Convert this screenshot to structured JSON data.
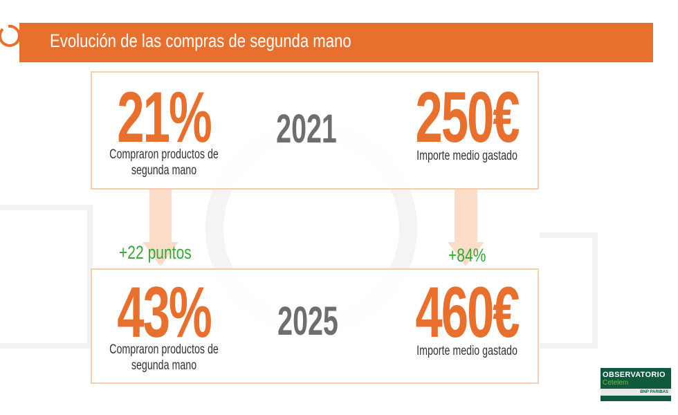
{
  "header": {
    "title": "Evolución de las compras de segunda mano"
  },
  "panels": [
    {
      "percent": "21%",
      "percent_caption": [
        "Compraron productos de",
        "segunda mano"
      ],
      "year": "2021",
      "amount": "250€",
      "amount_caption": "Importe medio gastado"
    },
    {
      "percent": "43%",
      "percent_caption": [
        "Compraron productos de",
        "segunda mano"
      ],
      "year": "2025",
      "amount": "460€",
      "amount_caption": "Importe medio gastado"
    }
  ],
  "changes": {
    "percent": "+22 puntos",
    "amount": "+84%"
  },
  "logo": {
    "title": "OBSERVATORIO",
    "brand": "Cetelem",
    "group": "BNP PARIBAS"
  }
}
